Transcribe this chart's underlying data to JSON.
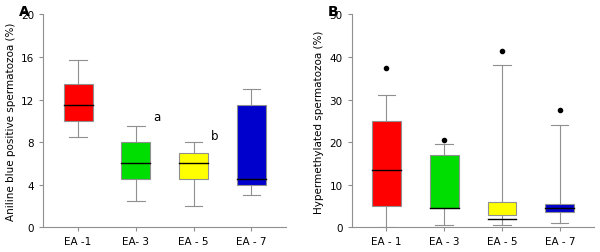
{
  "panel_A": {
    "title": "A",
    "ylabel": "Aniline blue positive spermatozoa (%)",
    "ylim": [
      0,
      20
    ],
    "yticks": [
      0,
      4,
      8,
      12,
      16,
      20
    ],
    "categories": [
      "EA -1",
      "EA- 3",
      "EA - 5",
      "EA - 7"
    ],
    "colors": [
      "#ff0000",
      "#00dd00",
      "#ffff00",
      "#0000cc"
    ],
    "boxes": [
      {
        "q1": 10.0,
        "median": 11.5,
        "q3": 13.5,
        "whisker_low": 8.5,
        "whisker_high": 15.7,
        "fliers": []
      },
      {
        "q1": 4.5,
        "median": 6.0,
        "q3": 8.0,
        "whisker_low": 2.5,
        "whisker_high": 9.5,
        "fliers": []
      },
      {
        "q1": 4.5,
        "median": 6.0,
        "q3": 7.0,
        "whisker_low": 2.0,
        "whisker_high": 8.0,
        "fliers": []
      },
      {
        "q1": 4.0,
        "median": 4.5,
        "q3": 11.5,
        "whisker_low": 3.0,
        "whisker_high": 13.0,
        "fliers": []
      }
    ],
    "annotations": [
      {
        "text": "a",
        "xi": 1,
        "y": 9.8
      },
      {
        "text": "b",
        "xi": 2,
        "y": 8.0
      }
    ]
  },
  "panel_B": {
    "title": "B",
    "ylabel": "Hypermethylated spermatozoa (%)",
    "ylim": [
      0,
      50
    ],
    "yticks": [
      0,
      10,
      20,
      30,
      40,
      50
    ],
    "categories": [
      "EA - 1",
      "EA - 3",
      "EA - 5",
      "EA - 7"
    ],
    "colors": [
      "#ff0000",
      "#00dd00",
      "#ffff00",
      "#0000cc"
    ],
    "boxes": [
      {
        "q1": 5.0,
        "median": 13.5,
        "q3": 25.0,
        "whisker_low": 0.0,
        "whisker_high": 31.0,
        "fliers": [
          37.5
        ]
      },
      {
        "q1": 4.5,
        "median": 4.5,
        "q3": 17.0,
        "whisker_low": 0.5,
        "whisker_high": 19.5,
        "fliers": [
          20.5
        ]
      },
      {
        "q1": 3.0,
        "median": 2.0,
        "q3": 6.0,
        "whisker_low": 0.5,
        "whisker_high": 38.0,
        "fliers": [
          41.5
        ]
      },
      {
        "q1": 3.5,
        "median": 4.5,
        "q3": 5.5,
        "whisker_low": 1.0,
        "whisker_high": 24.0,
        "fliers": [
          27.5
        ]
      }
    ],
    "annotations": []
  },
  "box_width": 0.5,
  "linecolor": "#909090",
  "mediancolor": "#000000",
  "flier_color": "#000000",
  "background_color": "#ffffff",
  "fontsize_label": 7.5,
  "fontsize_tick": 7.5,
  "fontsize_title": 10,
  "fontsize_annot": 8.5
}
